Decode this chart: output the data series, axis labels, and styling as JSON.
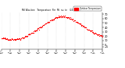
{
  "title": "Milwaukee Weather Outdoor Temperature per Minute (24 Hours)",
  "background_color": "#ffffff",
  "dot_color": "#ff0000",
  "dot_size": 0.8,
  "yticks": [
    -5,
    0,
    10,
    20,
    30,
    40,
    50,
    60,
    70
  ],
  "ymin": -10,
  "ymax": 75,
  "num_points": 200,
  "legend_label": "Outdoor Temperature",
  "legend_color": "#ff0000",
  "grid_color": "#aaaaaa",
  "num_xticks": 12
}
